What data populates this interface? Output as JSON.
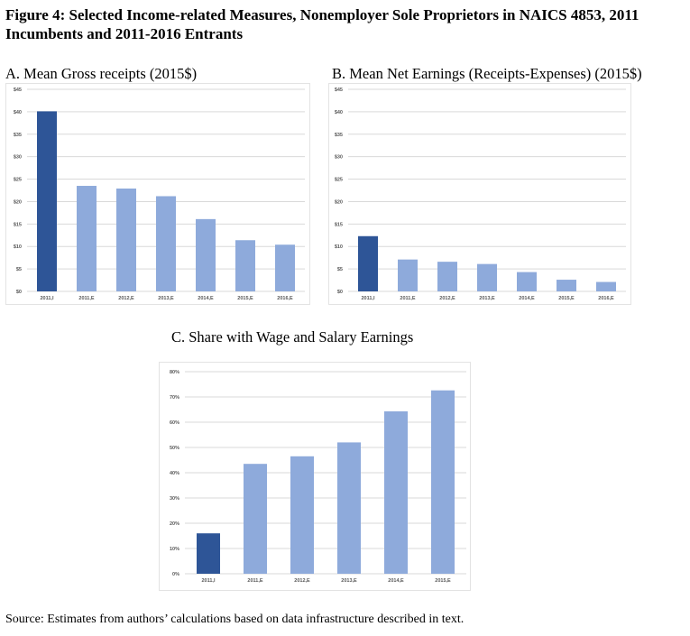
{
  "figure_title": "Figure 4: Selected Income-related Measures, Nonemployer Sole Proprietors in NAICS 4853, 2011 Incumbents and 2011-2016 Entrants",
  "source_note": "Source: Estimates from authors’ calculations based on data infrastructure described in text.",
  "colors": {
    "incumbent": "#2e5597",
    "entrant": "#8eaadb",
    "grid": "#d9d9d9",
    "axis_text": "#595959"
  },
  "chart_data": [
    {
      "id": "A",
      "type": "bar",
      "title": "A. Mean Gross receipts (2015$)",
      "categories": [
        "2011,I",
        "2011,E",
        "2012,E",
        "2013,E",
        "2014,E",
        "2015,E",
        "2016,E"
      ],
      "values": [
        40.1,
        23.5,
        22.9,
        21.2,
        16.1,
        11.4,
        10.4
      ],
      "ylim": [
        0,
        45
      ],
      "yticks": [
        0,
        5,
        10,
        15,
        20,
        25,
        30,
        35,
        40,
        45
      ],
      "ytick_labels": [
        "$0",
        "$5",
        "$10",
        "$15",
        "$20",
        "$25",
        "$30",
        "$35",
        "$40",
        "$45"
      ],
      "grid": true,
      "highlight_index": 0
    },
    {
      "id": "B",
      "type": "bar",
      "title": "B. Mean Net Earnings (Receipts-Expenses) (2015$)",
      "categories": [
        "2011,I",
        "2011,E",
        "2012,E",
        "2013,E",
        "2014,E",
        "2015,E",
        "2016,E"
      ],
      "values": [
        12.3,
        7.1,
        6.6,
        6.1,
        4.3,
        2.6,
        2.1
      ],
      "ylim": [
        0,
        45
      ],
      "yticks": [
        0,
        5,
        10,
        15,
        20,
        25,
        30,
        35,
        40,
        45
      ],
      "ytick_labels": [
        "$0",
        "$5",
        "$10",
        "$15",
        "$20",
        "$25",
        "$30",
        "$35",
        "$40",
        "$45"
      ],
      "grid": true,
      "highlight_index": 0
    },
    {
      "id": "C",
      "type": "bar",
      "title": "C. Share with Wage and Salary Earnings",
      "categories": [
        "2011,I",
        "2011,E",
        "2012,E",
        "2013,E",
        "2014,E",
        "2015,E"
      ],
      "values": [
        16,
        43.5,
        46.5,
        52,
        64.3,
        72.6
      ],
      "ylim": [
        0,
        80
      ],
      "yticks": [
        0,
        10,
        20,
        30,
        40,
        50,
        60,
        70,
        80
      ],
      "ytick_labels": [
        "0%",
        "10%",
        "20%",
        "30%",
        "40%",
        "50%",
        "60%",
        "70%",
        "80%"
      ],
      "grid": true,
      "highlight_index": 0
    }
  ]
}
